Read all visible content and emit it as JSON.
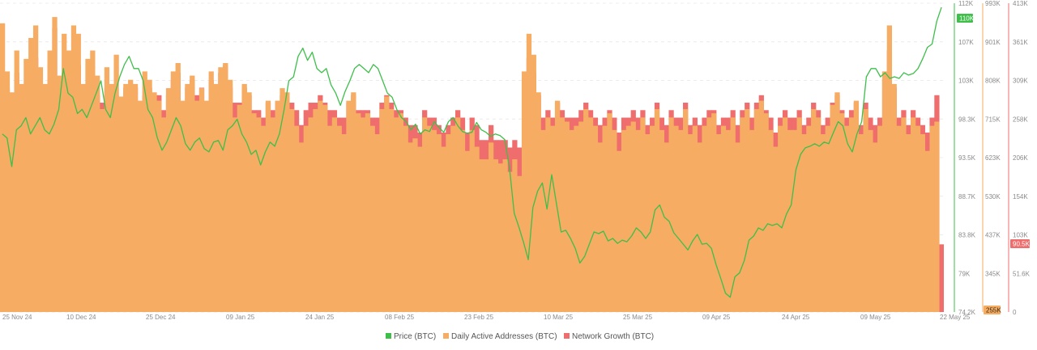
{
  "chart_data": {
    "type": "bar",
    "x_labels": [
      "25 Nov 24",
      "10 Dec 24",
      "25 Dec 24",
      "09 Jan 25",
      "24 Jan 25",
      "08 Feb 25",
      "23 Feb 25",
      "10 Mar 25",
      "25 Mar 25",
      "09 Apr 25",
      "24 Apr 25",
      "09 May 25",
      "22 May 25"
    ],
    "price_axis": {
      "ticks": [
        "112K",
        "107K",
        "103K",
        "98.3K",
        "93.5K",
        "88.7K",
        "83.8K",
        "79K",
        "74.2K"
      ],
      "range": [
        74200,
        112000
      ]
    },
    "daa_axis": {
      "ticks": [
        "993K",
        "901K",
        "808K",
        "715K",
        "623K",
        "530K",
        "437K",
        "345K"
      ],
      "range": [
        255000,
        993000
      ]
    },
    "growth_axis": {
      "ticks": [
        "413K",
        "361K",
        "309K",
        "258K",
        "206K",
        "154K",
        "103K",
        "51.6K",
        "0"
      ],
      "range": [
        0,
        413000
      ]
    },
    "badges": {
      "price": "110K",
      "daa": "255K",
      "growth": "90.5K"
    },
    "series": [
      {
        "name": "Price (BTC)",
        "type": "line",
        "color": "#3dbf4a",
        "values": [
          96000,
          95500,
          92000,
          96500,
          97000,
          98000,
          96000,
          97000,
          98000,
          96500,
          96000,
          97200,
          99000,
          104000,
          101000,
          100500,
          98500,
          99000,
          98000,
          99500,
          101000,
          102500,
          99000,
          98000,
          101000,
          103000,
          104500,
          105500,
          104000,
          104000,
          102500,
          99000,
          98000,
          95500,
          94000,
          95000,
          96500,
          98000,
          97000,
          94800,
          94000,
          95000,
          95500,
          94200,
          93800,
          95000,
          95200,
          94000,
          96500,
          97000,
          97800,
          96000,
          95000,
          93500,
          94000,
          92200,
          93800,
          95000,
          94500,
          96000,
          99000,
          102500,
          103000,
          105500,
          106500,
          105000,
          106000,
          104000,
          103500,
          104000,
          102000,
          101000,
          99500,
          101200,
          102500,
          104000,
          104500,
          104000,
          103500,
          104500,
          104000,
          102500,
          101000,
          100500,
          99000,
          98000,
          97500,
          96500,
          97200,
          96000,
          96500,
          96300,
          97500,
          96800,
          96200,
          97500,
          98000,
          97000,
          96300,
          96100,
          96200,
          97400,
          96500,
          96200,
          95700,
          96000,
          95800,
          95300,
          91800,
          86300,
          84600,
          82700,
          80600,
          87000,
          89000,
          90000,
          86800,
          91000,
          87500,
          84000,
          84200,
          83200,
          82000,
          80200,
          81000,
          82500,
          84000,
          83800,
          84100,
          82900,
          83200,
          82600,
          83000,
          82800,
          83500,
          84500,
          84000,
          83200,
          84000,
          86700,
          87300,
          85800,
          85300,
          83900,
          83200,
          82500,
          81800,
          82900,
          83700,
          82500,
          82600,
          82000,
          80000,
          78300,
          76500,
          76000,
          78500,
          79000,
          80500,
          83000,
          83500,
          84500,
          84200,
          85000,
          84800,
          85000,
          84500,
          86200,
          87300,
          91600,
          93500,
          94300,
          94500,
          94800,
          94500,
          95000,
          94800,
          96200,
          97500,
          97000,
          94800,
          93800,
          96000,
          97500,
          103000,
          104000,
          104000,
          103000,
          103500,
          102800,
          103000,
          102800,
          103500,
          103200,
          103400,
          104000,
          105200,
          106600,
          107000,
          109800,
          111500
        ]
      },
      {
        "name": "Daily Active Addresses (BTC)",
        "type": "bar",
        "color": "#f6ac62",
        "values": [
          945000,
          830000,
          780000,
          880000,
          800000,
          860000,
          910000,
          940000,
          840000,
          800000,
          880000,
          960000,
          820000,
          920000,
          880000,
          940000,
          920000,
          800000,
          860000,
          880000,
          820000,
          740000,
          840000,
          800000,
          870000,
          770000,
          800000,
          810000,
          800000,
          760000,
          830000,
          810000,
          780000,
          760000,
          720000,
          790000,
          830000,
          850000,
          760000,
          800000,
          820000,
          760000,
          790000,
          760000,
          830000,
          800000,
          840000,
          850000,
          810000,
          720000,
          750000,
          800000,
          780000,
          730000,
          720000,
          700000,
          760000,
          720000,
          760000,
          790000,
          780000,
          740000,
          700000,
          660000,
          700000,
          720000,
          740000,
          760000,
          750000,
          700000,
          720000,
          700000,
          680000,
          760000,
          780000,
          730000,
          720000,
          730000,
          700000,
          680000,
          740000,
          770000,
          740000,
          720000,
          730000,
          700000,
          660000,
          670000,
          650000,
          720000,
          700000,
          690000,
          680000,
          650000,
          680000,
          700000,
          720000,
          690000,
          640000,
          690000,
          650000,
          620000,
          620000,
          660000,
          620000,
          610000,
          620000,
          590000,
          620000,
          580000,
          830000,
          920000,
          870000,
          780000,
          690000,
          720000,
          700000,
          760000,
          720000,
          710000,
          690000,
          700000,
          710000,
          740000,
          720000,
          700000,
          660000,
          700000,
          730000,
          690000,
          640000,
          690000,
          700000,
          710000,
          690000,
          720000,
          680000,
          700000,
          740000,
          690000,
          660000,
          720000,
          700000,
          690000,
          740000,
          680000,
          700000,
          660000,
          700000,
          720000,
          730000,
          680000,
          700000,
          690000,
          720000,
          660000,
          720000,
          740000,
          690000,
          740000,
          760000,
          730000,
          690000,
          650000,
          700000,
          720000,
          690000,
          690000,
          720000,
          680000,
          700000,
          740000,
          720000,
          680000,
          700000,
          750000,
          780000,
          730000,
          700000,
          720000,
          760000,
          680000,
          740000,
          690000,
          660000,
          700000,
          830000,
          940000,
          800000,
          700000,
          720000,
          680000,
          720000,
          700000,
          680000,
          640000,
          700000,
          710000,
          255000
        ]
      },
      {
        "name": "Network Growth (BTC)",
        "type": "bar",
        "color": "#f06d6d",
        "values": [
          310000,
          300000,
          290000,
          320000,
          280000,
          300000,
          310000,
          340000,
          290000,
          280000,
          330000,
          380000,
          300000,
          320000,
          310000,
          350000,
          330000,
          280000,
          300000,
          320000,
          290000,
          280000,
          300000,
          300000,
          290000,
          280000,
          300000,
          290000,
          300000,
          280000,
          290000,
          300000,
          280000,
          290000,
          270000,
          290000,
          310000,
          320000,
          280000,
          300000,
          310000,
          290000,
          300000,
          280000,
          310000,
          300000,
          320000,
          330000,
          300000,
          280000,
          280000,
          300000,
          290000,
          270000,
          270000,
          260000,
          280000,
          270000,
          280000,
          290000,
          290000,
          280000,
          270000,
          250000,
          270000,
          280000,
          280000,
          290000,
          280000,
          270000,
          270000,
          260000,
          260000,
          280000,
          290000,
          270000,
          270000,
          270000,
          260000,
          260000,
          280000,
          290000,
          280000,
          270000,
          270000,
          260000,
          250000,
          250000,
          240000,
          270000,
          260000,
          260000,
          250000,
          240000,
          250000,
          260000,
          270000,
          260000,
          240000,
          260000,
          250000,
          230000,
          230000,
          250000,
          230000,
          230000,
          230000,
          220000,
          230000,
          220000,
          310000,
          340000,
          320000,
          290000,
          260000,
          270000,
          260000,
          280000,
          270000,
          260000,
          260000,
          260000,
          270000,
          280000,
          270000,
          260000,
          250000,
          260000,
          270000,
          260000,
          240000,
          260000,
          260000,
          270000,
          260000,
          270000,
          250000,
          260000,
          280000,
          260000,
          250000,
          270000,
          260000,
          260000,
          280000,
          250000,
          260000,
          250000,
          260000,
          270000,
          270000,
          250000,
          260000,
          260000,
          270000,
          250000,
          270000,
          280000,
          260000,
          280000,
          290000,
          270000,
          260000,
          240000,
          260000,
          270000,
          260000,
          260000,
          270000,
          250000,
          260000,
          280000,
          270000,
          250000,
          260000,
          280000,
          290000,
          270000,
          260000,
          270000,
          280000,
          250000,
          280000,
          260000,
          250000,
          260000,
          310000,
          350000,
          300000,
          260000,
          270000,
          250000,
          270000,
          260000,
          250000,
          240000,
          260000,
          290000,
          90500
        ]
      }
    ]
  }
}
